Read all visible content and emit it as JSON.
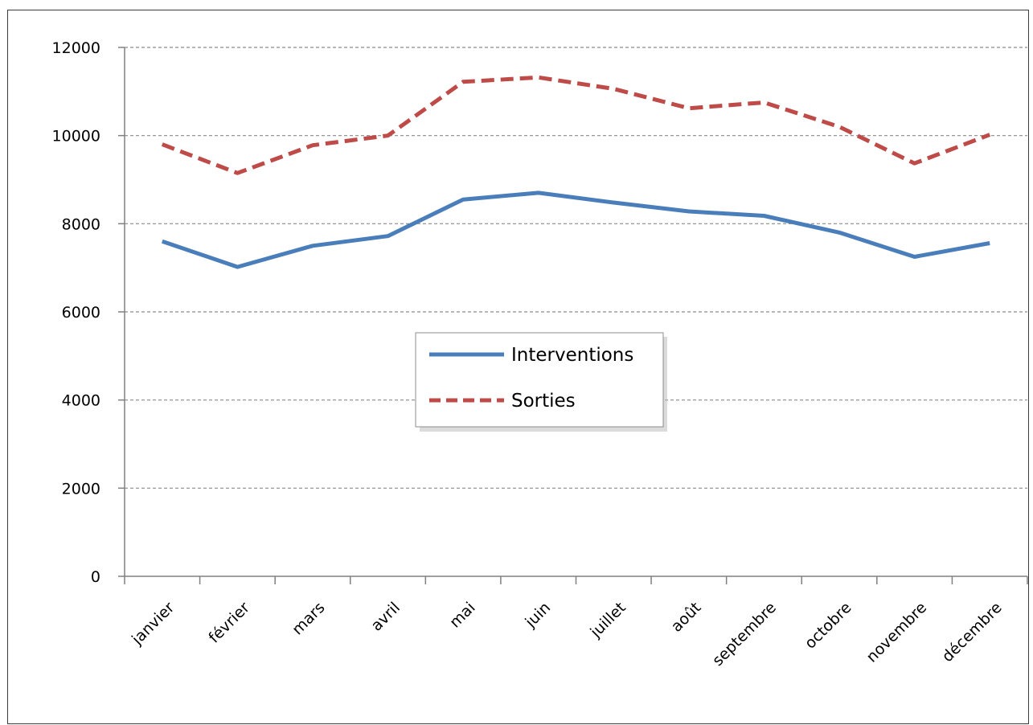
{
  "chart_data": {
    "type": "line",
    "categories": [
      "janvier",
      "février",
      "mars",
      "avril",
      "mai",
      "juin",
      "juillet",
      "août",
      "septembre",
      "octobre",
      "novembre",
      "décembre"
    ],
    "series": [
      {
        "name": "Interventions",
        "color": "#4a7ebb",
        "style": "solid",
        "values": [
          7600,
          7020,
          7500,
          7720,
          8550,
          8700,
          8480,
          8280,
          8180,
          7800,
          7250,
          7560
        ]
      },
      {
        "name": "Sorties",
        "color": "#be4b48",
        "style": "dashed",
        "values": [
          9800,
          9150,
          9780,
          10000,
          11220,
          11320,
          11060,
          10620,
          10750,
          10200,
          9370,
          10020
        ]
      }
    ],
    "yticks": [
      "0",
      "2000",
      "4000",
      "6000",
      "8000",
      "10000",
      "12000"
    ],
    "ylim": [
      0,
      12000
    ],
    "grid": true,
    "legend_position": "center"
  }
}
